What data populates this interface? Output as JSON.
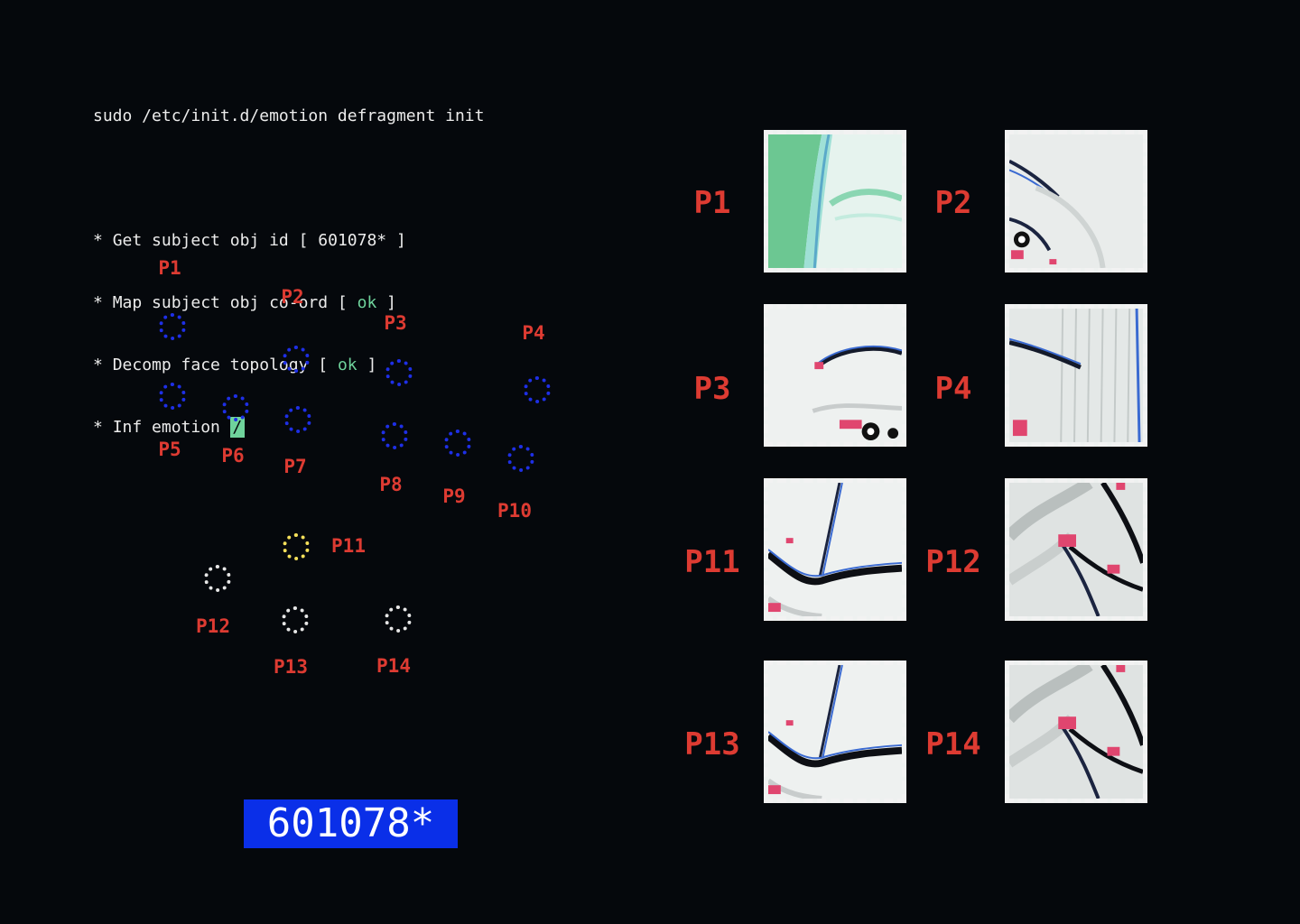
{
  "terminal": {
    "command": "sudo /etc/init.d/emotion defragment init",
    "lines": [
      {
        "bullet": "*",
        "text": "Get subject obj id [ ",
        "status": "601078*",
        "close": " ]"
      },
      {
        "bullet": "*",
        "text": "Map subject obj co-ord [ ",
        "status": "ok",
        "close": " ]"
      },
      {
        "bullet": "*",
        "text": "Decomp face topology [ ",
        "status": "ok",
        "close": " ]"
      },
      {
        "bullet": "*",
        "text": "Inf emotion ",
        "status": "/",
        "close": ""
      }
    ]
  },
  "colors": {
    "background": "#05080c",
    "label_red": "#dd3b32",
    "point_blue": "#1e2fe6",
    "point_yellow": "#f5e05a",
    "point_white": "#e6e6e6",
    "ok_green": "#6fd39c",
    "badge_blue": "#0a2fe8"
  },
  "points": [
    {
      "label": "P1",
      "color": "blue"
    },
    {
      "label": "P2",
      "color": "blue"
    },
    {
      "label": "P3",
      "color": "blue"
    },
    {
      "label": "P4",
      "color": "blue"
    },
    {
      "label": "P5",
      "color": "blue"
    },
    {
      "label": "P6",
      "color": "blue"
    },
    {
      "label": "P7",
      "color": "blue"
    },
    {
      "label": "P8",
      "color": "blue"
    },
    {
      "label": "P9",
      "color": "blue"
    },
    {
      "label": "P10",
      "color": "blue"
    },
    {
      "label": "P11",
      "color": "yellow"
    },
    {
      "label": "P12",
      "color": "white"
    },
    {
      "label": "P13",
      "color": "white"
    },
    {
      "label": "P14",
      "color": "white"
    }
  ],
  "badge": {
    "text": "601078*"
  },
  "patches": [
    {
      "label": "P1",
      "content": "green-region-patch"
    },
    {
      "label": "P2",
      "content": "eye-corner-patch"
    },
    {
      "label": "P3",
      "content": "eyebrow-eye-patch"
    },
    {
      "label": "P4",
      "content": "eyebrow-edge-patch"
    },
    {
      "label": "P11",
      "content": "mouth-corner-patch"
    },
    {
      "label": "P12",
      "content": "cheek-patch"
    },
    {
      "label": "P13",
      "content": "mouth-corner-patch"
    },
    {
      "label": "P14",
      "content": "cheek-patch"
    }
  ]
}
